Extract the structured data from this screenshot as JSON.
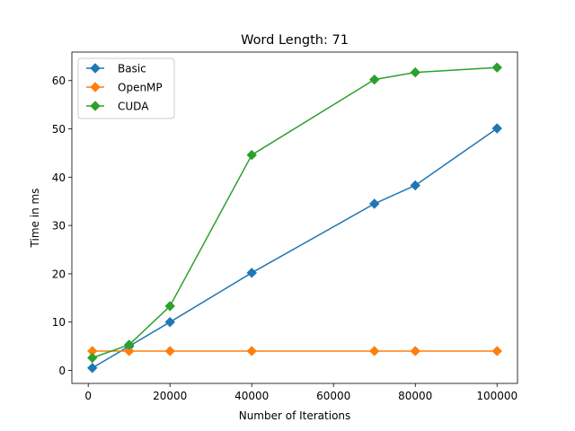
{
  "chart_data": {
    "type": "line",
    "title": "Word Length: 71",
    "xlabel": "Number of Iterations",
    "ylabel": "Time in ms",
    "xlim": [
      -4000,
      105000
    ],
    "ylim": [
      -2.7,
      65.9
    ],
    "xticks": [
      0,
      20000,
      40000,
      60000,
      80000,
      100000
    ],
    "yticks": [
      0,
      10,
      20,
      30,
      40,
      50,
      60
    ],
    "grid": false,
    "legend_position": "top-left",
    "marker": "diamond",
    "series": [
      {
        "name": "Basic",
        "color": "#1f77b4",
        "x": [
          1000,
          10000,
          20000,
          40000,
          70000,
          80000,
          100000
        ],
        "y": [
          0.5,
          5.0,
          10.0,
          20.2,
          34.5,
          38.3,
          50.1
        ]
      },
      {
        "name": "OpenMP",
        "color": "#ff7f0e",
        "x": [
          1000,
          10000,
          20000,
          40000,
          70000,
          80000,
          100000
        ],
        "y": [
          4.0,
          4.0,
          4.0,
          4.0,
          4.0,
          4.0,
          4.0
        ]
      },
      {
        "name": "CUDA",
        "color": "#2ca02c",
        "x": [
          1000,
          10000,
          20000,
          40000,
          70000,
          80000,
          100000
        ],
        "y": [
          2.6,
          5.3,
          13.3,
          44.6,
          60.2,
          61.7,
          62.7
        ]
      }
    ]
  }
}
